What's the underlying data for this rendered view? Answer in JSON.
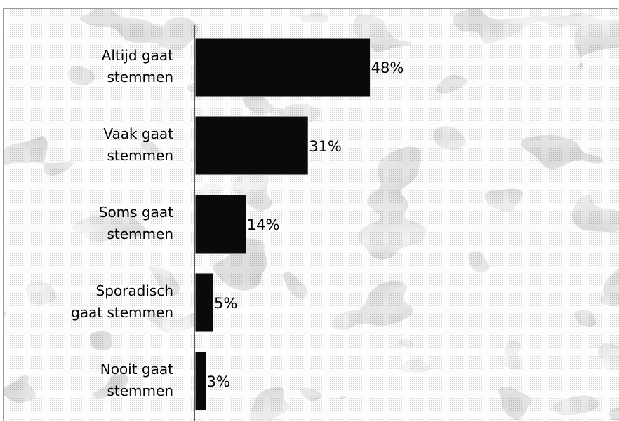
{
  "caption": "",
  "colors": {
    "bar": "#0a0a0a",
    "background_light": "#eeeeee",
    "background_dark": "#9c9c9c",
    "axis": "#222222"
  },
  "chart_data": {
    "type": "bar",
    "orientation": "horizontal",
    "title": "",
    "xlabel": "",
    "ylabel": "",
    "categories": [
      [
        "Altijd gaat",
        "stemmen"
      ],
      [
        "Vaak gaat",
        "stemmen"
      ],
      [
        "Soms gaat",
        "stemmen"
      ],
      [
        "Sporadisch",
        "gaat stemmen"
      ],
      [
        "Nooit gaat",
        "stemmen"
      ]
    ],
    "values": [
      48,
      31,
      14,
      5,
      3
    ],
    "value_labels": [
      "48%",
      "31%",
      "14%",
      "5%",
      "3%"
    ],
    "unit": "%",
    "xlim": [
      0,
      100
    ],
    "grid": false,
    "legend": "none"
  }
}
